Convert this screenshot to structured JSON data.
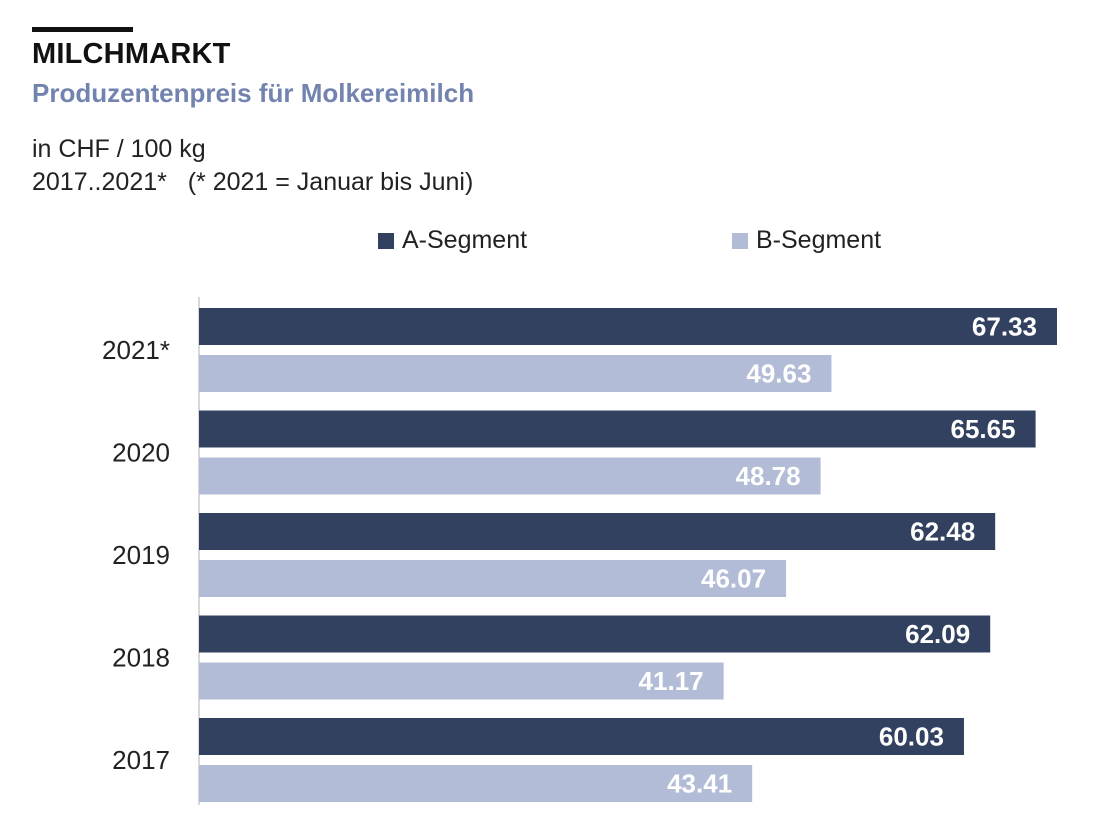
{
  "header": {
    "title": "MILCHMARKT",
    "subtitle": "Produzentenpreis  für Molkereimilch",
    "unit": "in CHF / 100 kg",
    "note": "2017..2021*   (* 2021 = Januar bis Juni)"
  },
  "colors": {
    "a_segment": "#334160",
    "b_segment": "#b3bcd6",
    "subtitle": "#7383b0",
    "axis": "#cccccc",
    "label_text": "#ffffff"
  },
  "chart_data": {
    "type": "bar",
    "orientation": "horizontal",
    "categories": [
      "2021*",
      "2020",
      "2019",
      "2018",
      "2017"
    ],
    "series": [
      {
        "name": "A-Segment",
        "values": [
          67.33,
          65.65,
          62.48,
          62.09,
          60.03
        ]
      },
      {
        "name": "B-Segment",
        "values": [
          49.63,
          48.78,
          46.07,
          41.17,
          43.41
        ]
      }
    ],
    "xlim": [
      0,
      67.33
    ],
    "grid": false,
    "legend": "top-center",
    "data_labels": true
  }
}
